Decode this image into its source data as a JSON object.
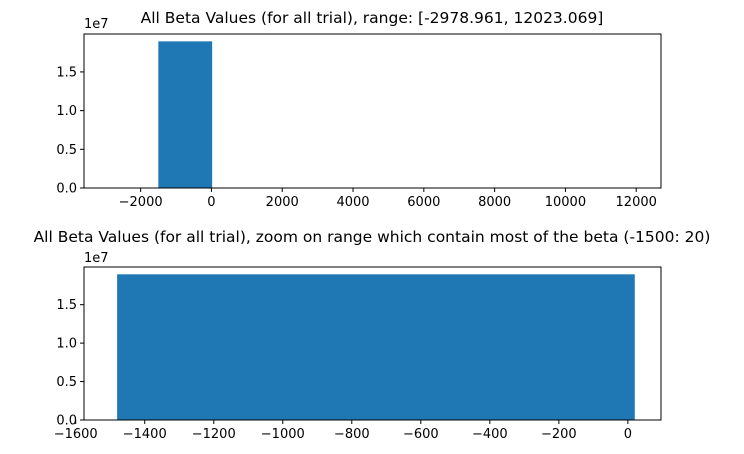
{
  "colors": {
    "bar": "#1f77b4",
    "axis": "#000000",
    "background": "#ffffff"
  },
  "chart_data": [
    {
      "type": "bar",
      "title": "All Beta Values (for all trial), range: [-2978.961, 12023.069]",
      "xlabel": "",
      "ylabel": "",
      "y_offset_label": "1e7",
      "xlim": [
        -3600,
        12700
      ],
      "ylim": [
        0,
        1.99
      ],
      "grid": false,
      "xticks": [
        -2000,
        0,
        2000,
        4000,
        6000,
        8000,
        10000,
        12000
      ],
      "xtick_labels": [
        "−2000",
        "0",
        "2000",
        "4000",
        "6000",
        "8000",
        "10000",
        "12000"
      ],
      "yticks": [
        0.0,
        0.5,
        1.0,
        1.5
      ],
      "ytick_labels": [
        "0.0",
        "0.5",
        "1.0",
        "1.5"
      ],
      "bars": [
        {
          "x0": -1500,
          "x1": 20,
          "value": 1.895
        }
      ]
    },
    {
      "type": "bar",
      "title": "All Beta Values (for all trial), zoom on range which contain most of the beta (-1500: 20)",
      "xlabel": "",
      "ylabel": "",
      "y_offset_label": "1e7",
      "xlim": [
        -1576,
        96
      ],
      "ylim": [
        0,
        1.99
      ],
      "grid": false,
      "xticks": [
        -1600,
        -1400,
        -1200,
        -1000,
        -800,
        -600,
        -400,
        -200,
        0
      ],
      "xtick_labels": [
        "−1600",
        "−1400",
        "−1200",
        "−1000",
        "−800",
        "−600",
        "−400",
        "−200",
        "0"
      ],
      "yticks": [
        0.0,
        0.5,
        1.0,
        1.5
      ],
      "ytick_labels": [
        "0.0",
        "0.5",
        "1.0",
        "1.5"
      ],
      "bars": [
        {
          "x0": -1480,
          "x1": 20,
          "value": 1.895
        }
      ]
    }
  ]
}
